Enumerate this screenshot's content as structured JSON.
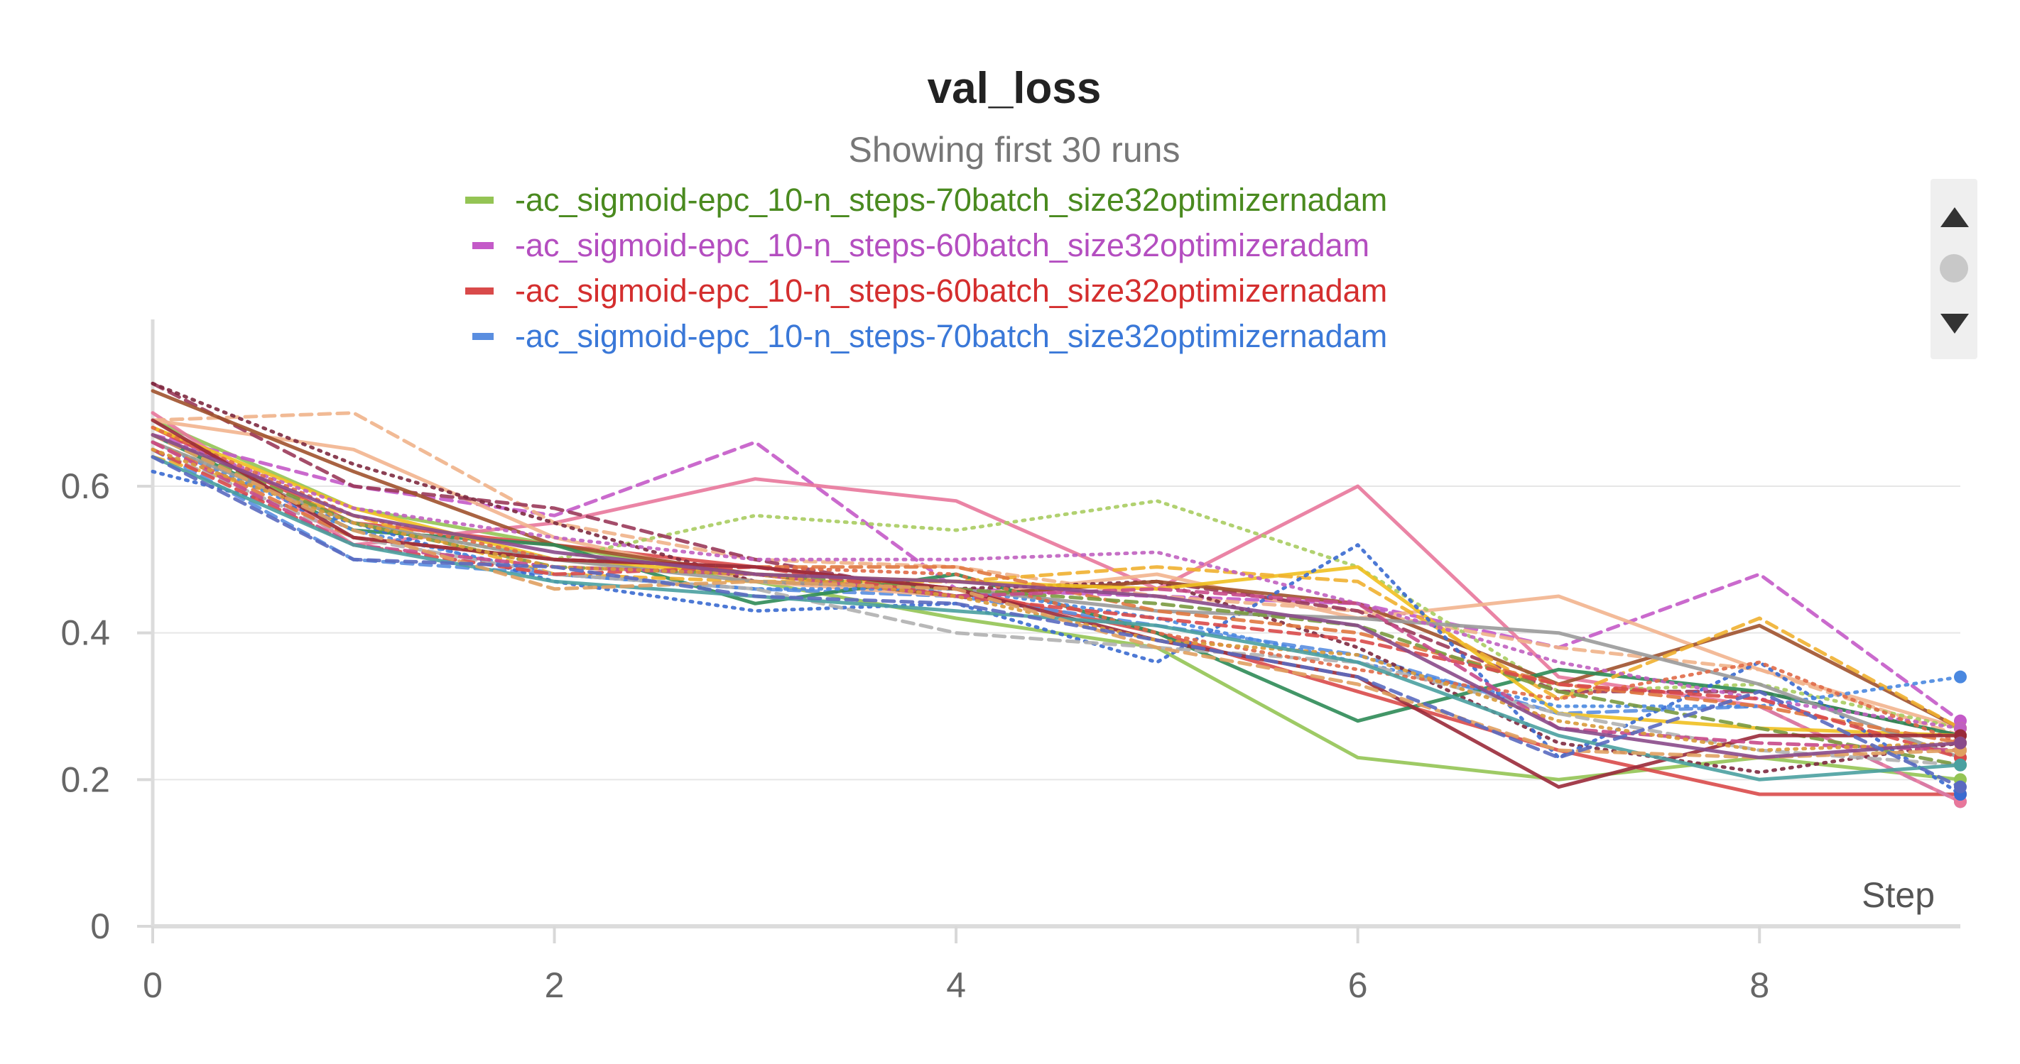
{
  "chart_data": {
    "type": "line",
    "title": "val_loss",
    "subtitle": "Showing first 30 runs",
    "xlabel": "Step",
    "ylabel": "",
    "xlim": [
      0,
      9
    ],
    "ylim": [
      0,
      0.75
    ],
    "xticks": [
      "0",
      "2",
      "4",
      "6",
      "8"
    ],
    "yticks": [
      "0",
      "0.2",
      "0.4",
      "0.6"
    ],
    "grid": true,
    "x": [
      0,
      1,
      2,
      3,
      4,
      5,
      6,
      7,
      8,
      9
    ],
    "legend": [
      {
        "name": "-ac_sigmoid-epc_10-n_steps-70batch_size32optimizernadam",
        "color": "#94c454",
        "text_color": "#4a8a1f",
        "dash": "solid"
      },
      {
        "name": "-ac_sigmoid-epc_10-n_steps-60batch_size32optimizeradam",
        "color": "#c45ac8",
        "text_color": "#b44ec0",
        "dash": "dash"
      },
      {
        "name": "-ac_sigmoid-epc_10-n_steps-60batch_size32optimizernadam",
        "color": "#d94a4a",
        "text_color": "#d42e2e",
        "dash": "solid"
      },
      {
        "name": "-ac_sigmoid-epc_10-n_steps-70batch_size32optimizernadam",
        "color": "#5a8ee0",
        "text_color": "#3a78d8",
        "dash": "dash"
      }
    ],
    "series": [
      {
        "color": "#94c454",
        "dash": "solid",
        "values": [
          0.69,
          0.57,
          0.52,
          0.47,
          0.42,
          0.38,
          0.23,
          0.2,
          0.23,
          0.2
        ]
      },
      {
        "color": "#c45ac8",
        "dash": "dash",
        "values": [
          0.67,
          0.6,
          0.56,
          0.66,
          0.46,
          0.45,
          0.44,
          0.38,
          0.48,
          0.28
        ]
      },
      {
        "color": "#d94a4a",
        "dash": "solid",
        "values": [
          0.68,
          0.55,
          0.52,
          0.49,
          0.46,
          0.4,
          0.32,
          0.24,
          0.18,
          0.18
        ]
      },
      {
        "color": "#5a8ee0",
        "dash": "dash",
        "values": [
          0.65,
          0.5,
          0.48,
          0.46,
          0.45,
          0.41,
          0.37,
          0.29,
          0.3,
          0.17
        ]
      },
      {
        "color": "#e8779b",
        "dash": "solid",
        "values": [
          0.7,
          0.52,
          0.55,
          0.61,
          0.58,
          0.46,
          0.6,
          0.34,
          0.3,
          0.17
        ]
      },
      {
        "color": "#f0b28a",
        "dash": "dash",
        "values": [
          0.69,
          0.7,
          0.55,
          0.5,
          0.49,
          0.45,
          0.43,
          0.38,
          0.35,
          0.26
        ]
      },
      {
        "color": "#f2b48e",
        "dash": "solid",
        "values": [
          0.69,
          0.65,
          0.53,
          0.47,
          0.45,
          0.48,
          0.42,
          0.45,
          0.35,
          0.27
        ]
      },
      {
        "color": "#a8cc60",
        "dash": "dot",
        "values": [
          0.66,
          0.55,
          0.5,
          0.56,
          0.54,
          0.58,
          0.49,
          0.32,
          0.33,
          0.27
        ]
      },
      {
        "color": "#9a3a5a",
        "dash": "dash",
        "values": [
          0.74,
          0.6,
          0.57,
          0.5,
          0.45,
          0.47,
          0.43,
          0.32,
          0.32,
          0.26
        ]
      },
      {
        "color": "#7e2a40",
        "dash": "dot",
        "values": [
          0.74,
          0.63,
          0.55,
          0.47,
          0.46,
          0.47,
          0.38,
          0.25,
          0.21,
          0.25
        ]
      },
      {
        "color": "#a0522d",
        "dash": "solid",
        "values": [
          0.73,
          0.62,
          0.52,
          0.48,
          0.45,
          0.47,
          0.44,
          0.33,
          0.41,
          0.27
        ]
      },
      {
        "color": "#2e8b57",
        "dash": "solid",
        "values": [
          0.67,
          0.54,
          0.52,
          0.44,
          0.48,
          0.4,
          0.28,
          0.35,
          0.32,
          0.26
        ]
      },
      {
        "color": "#f0c020",
        "dash": "solid",
        "values": [
          0.68,
          0.57,
          0.5,
          0.48,
          0.47,
          0.46,
          0.49,
          0.29,
          0.27,
          0.26
        ]
      },
      {
        "color": "#f0b030",
        "dash": "dash",
        "values": [
          0.64,
          0.56,
          0.48,
          0.47,
          0.47,
          0.49,
          0.47,
          0.31,
          0.42,
          0.27
        ]
      },
      {
        "color": "#3a6ad0",
        "dash": "dot",
        "values": [
          0.62,
          0.55,
          0.47,
          0.43,
          0.44,
          0.36,
          0.52,
          0.23,
          0.36,
          0.18
        ]
      },
      {
        "color": "#4a88e0",
        "dash": "dot",
        "values": [
          0.66,
          0.54,
          0.48,
          0.46,
          0.46,
          0.42,
          0.36,
          0.3,
          0.3,
          0.34
        ]
      },
      {
        "color": "#b0b0b0",
        "dash": "dash",
        "values": [
          0.65,
          0.53,
          0.48,
          0.46,
          0.4,
          0.38,
          0.36,
          0.29,
          0.24,
          0.22
        ]
      },
      {
        "color": "#9a9a9a",
        "dash": "solid",
        "values": [
          0.66,
          0.55,
          0.5,
          0.47,
          0.46,
          0.43,
          0.42,
          0.4,
          0.33,
          0.23
        ]
      },
      {
        "color": "#c060c0",
        "dash": "dot",
        "values": [
          0.67,
          0.57,
          0.53,
          0.5,
          0.5,
          0.51,
          0.44,
          0.36,
          0.31,
          0.27
        ]
      },
      {
        "color": "#e07840",
        "dash": "dash",
        "values": [
          0.66,
          0.53,
          0.5,
          0.49,
          0.49,
          0.43,
          0.4,
          0.33,
          0.3,
          0.25
        ]
      },
      {
        "color": "#e06a48",
        "dash": "dot",
        "values": [
          0.68,
          0.56,
          0.5,
          0.49,
          0.48,
          0.4,
          0.35,
          0.31,
          0.36,
          0.25
        ]
      },
      {
        "color": "#7a9a40",
        "dash": "dash",
        "values": [
          0.67,
          0.55,
          0.49,
          0.48,
          0.46,
          0.44,
          0.41,
          0.32,
          0.27,
          0.22
        ]
      },
      {
        "color": "#d94a4a",
        "dash": "dash",
        "values": [
          0.65,
          0.52,
          0.48,
          0.49,
          0.45,
          0.42,
          0.39,
          0.33,
          0.31,
          0.23
        ]
      },
      {
        "color": "#9a2a3a",
        "dash": "solid",
        "values": [
          0.69,
          0.53,
          0.5,
          0.49,
          0.46,
          0.39,
          0.34,
          0.19,
          0.26,
          0.26
        ]
      },
      {
        "color": "#c84a8a",
        "dash": "dash",
        "values": [
          0.66,
          0.52,
          0.49,
          0.48,
          0.45,
          0.46,
          0.44,
          0.27,
          0.25,
          0.24
        ]
      },
      {
        "color": "#d89a3a",
        "dash": "dot",
        "values": [
          0.65,
          0.55,
          0.49,
          0.48,
          0.45,
          0.39,
          0.37,
          0.28,
          0.24,
          0.25
        ]
      },
      {
        "color": "#4aa0a0",
        "dash": "solid",
        "values": [
          0.64,
          0.52,
          0.47,
          0.45,
          0.43,
          0.41,
          0.36,
          0.26,
          0.2,
          0.22
        ]
      },
      {
        "color": "#e0a060",
        "dash": "dash",
        "values": [
          0.67,
          0.54,
          0.46,
          0.47,
          0.46,
          0.38,
          0.33,
          0.24,
          0.23,
          0.24
        ]
      },
      {
        "color": "#8a4a8a",
        "dash": "solid",
        "values": [
          0.67,
          0.56,
          0.51,
          0.48,
          0.47,
          0.45,
          0.41,
          0.27,
          0.23,
          0.25
        ]
      },
      {
        "color": "#5a6ac0",
        "dash": "dash",
        "values": [
          0.64,
          0.5,
          0.49,
          0.45,
          0.44,
          0.39,
          0.34,
          0.23,
          0.32,
          0.19
        ]
      }
    ]
  },
  "legend_scroller": {
    "up_icon": "triangle-up-icon",
    "position_icon": "circle-icon",
    "down_icon": "triangle-down-icon"
  }
}
